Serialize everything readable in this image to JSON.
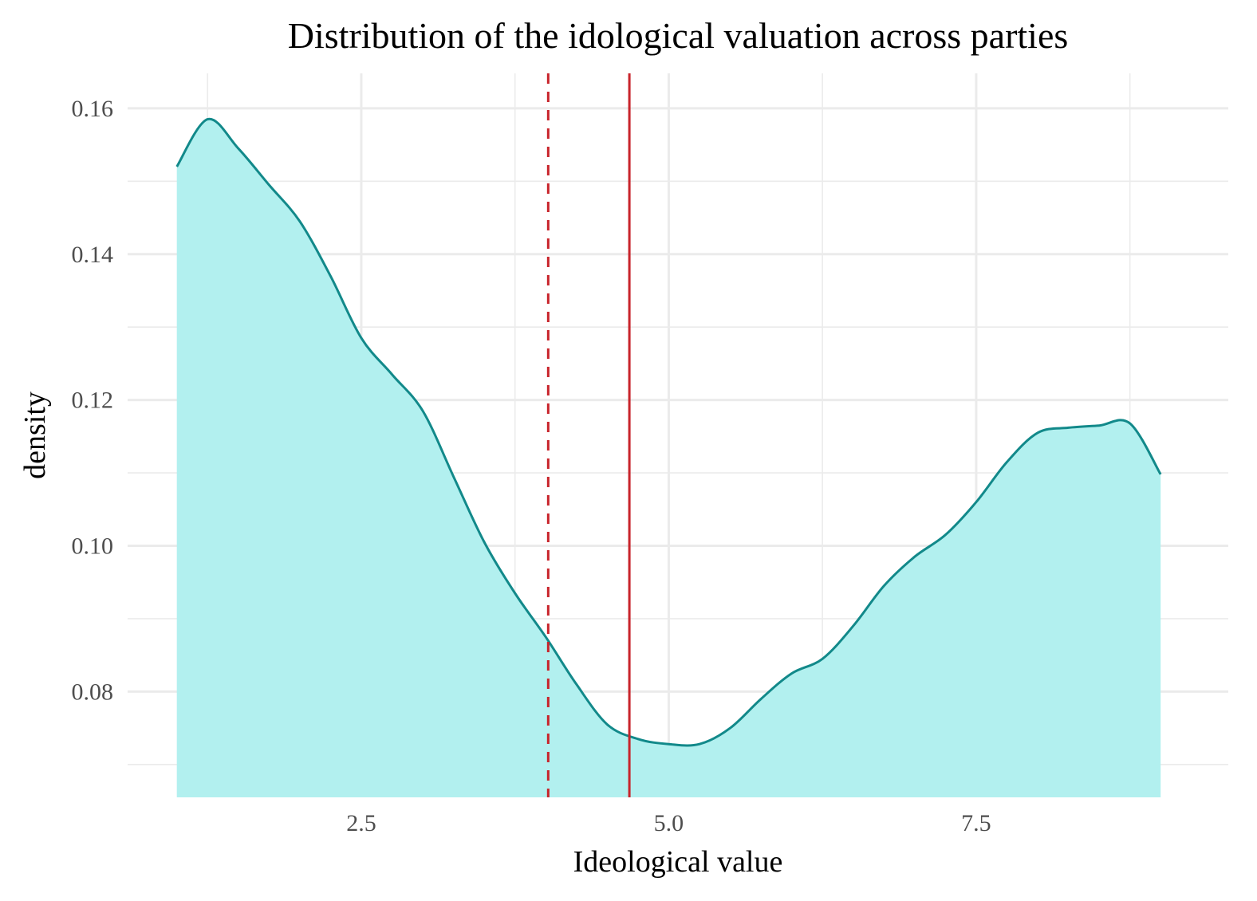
{
  "chart_data": {
    "type": "area",
    "title": "Distribution of the idological valuation across parties",
    "xlabel": "Ideological value",
    "ylabel": "density",
    "xlim": [
      0.6,
      9.55
    ],
    "ylim": [
      0.0655,
      0.1648
    ],
    "x_ticks": [
      2.5,
      5.0,
      7.5
    ],
    "x_tick_labels": [
      "2.5",
      "5.0",
      "7.5"
    ],
    "y_ticks": [
      0.08,
      0.1,
      0.12,
      0.14,
      0.16
    ],
    "y_tick_labels": [
      "0.08",
      "0.10",
      "0.12",
      "0.14",
      "0.16"
    ],
    "grid": true,
    "legend": "none",
    "series": [
      {
        "x": [
          1.0,
          1.25,
          1.5,
          1.75,
          2.0,
          2.25,
          2.5,
          2.75,
          3.0,
          3.25,
          3.5,
          3.75,
          4.0,
          4.25,
          4.5,
          4.75,
          5.0,
          5.25,
          5.5,
          5.75,
          6.0,
          6.25,
          6.5,
          6.75,
          7.0,
          7.25,
          7.5,
          7.75,
          8.0,
          8.25,
          8.5,
          8.75,
          9.0
        ],
        "y": [
          0.152,
          0.1585,
          0.1545,
          0.1495,
          0.1445,
          0.137,
          0.1285,
          0.1235,
          0.1185,
          0.1095,
          0.1005,
          0.0935,
          0.0875,
          0.081,
          0.0755,
          0.0735,
          0.0728,
          0.0728,
          0.075,
          0.079,
          0.0825,
          0.0845,
          0.089,
          0.0945,
          0.0985,
          0.1015,
          0.106,
          0.1115,
          0.1155,
          0.1162,
          0.1165,
          0.1168,
          0.1098
        ],
        "line_color": "#12898a",
        "fill_color": "#b2f0ef"
      }
    ],
    "vlines": [
      {
        "x": 4.02,
        "style": "dashed",
        "color": "#c8242b"
      },
      {
        "x": 4.68,
        "style": "solid",
        "color": "#c8242b"
      }
    ]
  }
}
